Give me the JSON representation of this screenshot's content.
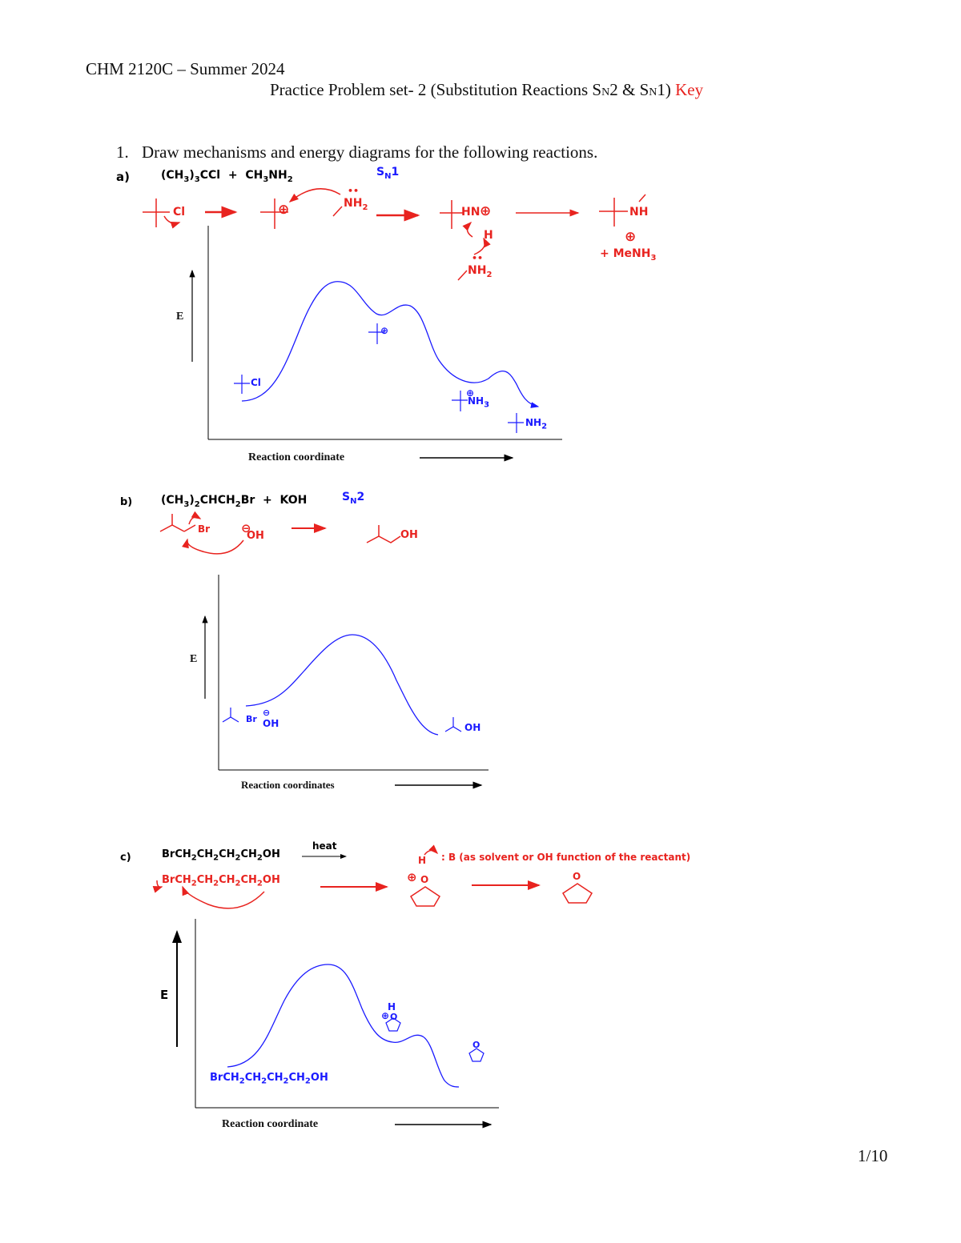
{
  "header": {
    "course": "CHM 2120C – Summer 2024",
    "set_title": "Practice Problem set- 2 (Substitution Reactions S",
    "sub_n1": "N",
    "mid": "2 & S",
    "sub_n2": "N",
    "end": "1) ",
    "key": "Key"
  },
  "question": {
    "number": "1.",
    "text": "Draw mechanisms and energy diagrams for the following reactions."
  },
  "part_a": {
    "label": "a)",
    "reactant1": "(CH",
    "r1s1": "3",
    "r1tail": ")",
    "r1s2": "3",
    "r1end": "CCl",
    "plus": "+",
    "reactant2": "CH",
    "r2s1": "3",
    "r2mid": "NH",
    "r2s2": "2",
    "mech": "S",
    "mech_sub": "N",
    "mech_num": "1",
    "cl": "Cl",
    "plus_sym": "⊕",
    "nh2": "NH",
    "nh2s": "2",
    "hn": "HN",
    "h": "H",
    "nh": "NH",
    "menh": "+ MeNH",
    "menh_s": "3",
    "axis_e": "E",
    "axis_x": "Reaction coordinate",
    "d_cl": "Cl",
    "d_nh3": "NH",
    "d_nh3_s": "3",
    "d_nh2": "NH",
    "d_nh2_s": "2"
  },
  "part_b": {
    "label": "b)",
    "reactant": "(CH",
    "rs1": "3",
    "rtail": ")",
    "rs2": "2",
    "rend": "CHCH",
    "rs3": "2",
    "rbr": "Br",
    "plus": "+",
    "koh": "KOH",
    "mech": "S",
    "mech_sub": "N",
    "mech_num": "2",
    "br": "Br",
    "oh_minus": "⊖",
    "oh": "OH",
    "prod_oh": "OH",
    "axis_e": "E",
    "axis_x": "Reaction coordinates",
    "d_br": "Br",
    "d_oh": "OH",
    "d_prod": "OH"
  },
  "part_c": {
    "label": "c)",
    "reactant": "BrCH",
    "heat": "heat",
    "chain": "BrCH2CH2CH2CH2OH",
    "chain_plain": "BrCH",
    "base_note": "B (as solvent or OH function of the reactant)",
    "h": "H",
    "o": "O",
    "axis_e": "E",
    "axis_x": "Reaction coordinate",
    "d_reactant": "BrCH",
    "d_h": "H",
    "d_o": "O",
    "d_prod_o": "O"
  },
  "page_number": "1/10"
}
